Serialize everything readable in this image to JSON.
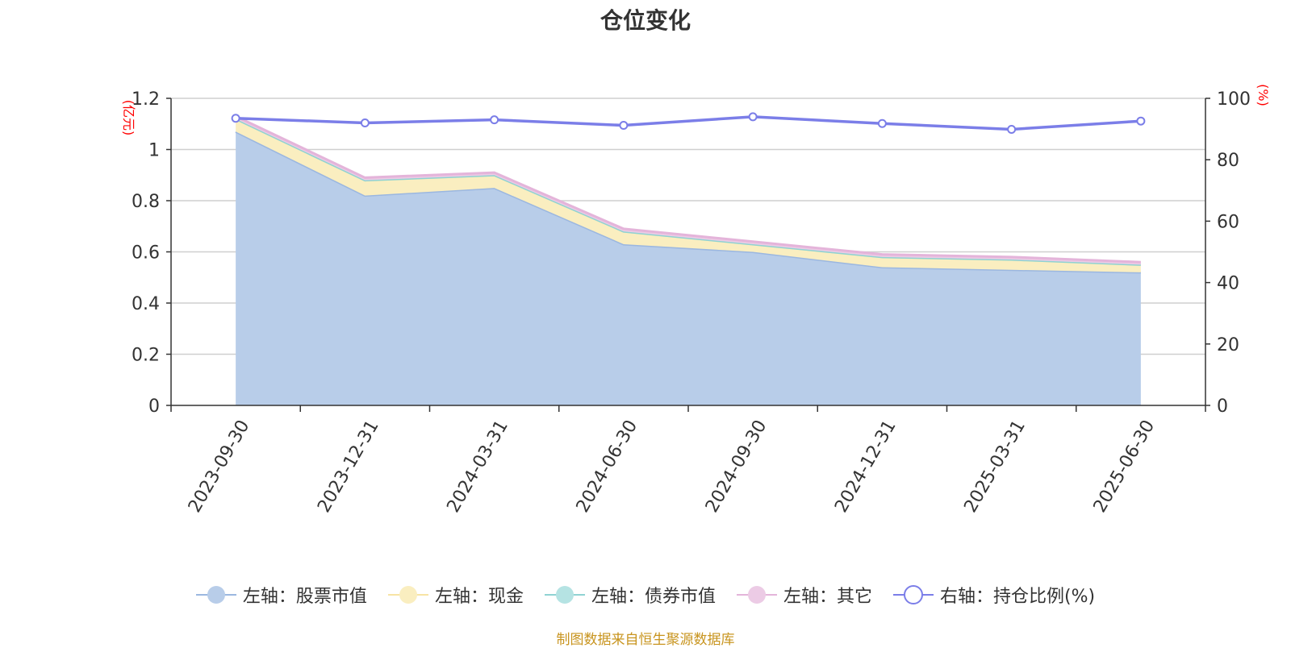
{
  "chart_data": {
    "type": "area",
    "title": "仓位变化",
    "categories": [
      "2023-09-30",
      "2023-12-31",
      "2024-03-31",
      "2024-06-30",
      "2024-09-30",
      "2024-12-31",
      "2025-03-31",
      "2025-06-30"
    ],
    "left_axis": {
      "unit": "(亿元)",
      "ylim": [
        0,
        1.2
      ],
      "ticks": [
        0,
        0.2,
        0.4,
        0.6,
        0.8,
        1,
        1.2
      ]
    },
    "right_axis": {
      "unit": "(%)",
      "ylim": [
        0,
        100
      ],
      "ticks": [
        0,
        20,
        40,
        60,
        80,
        100
      ]
    },
    "series": [
      {
        "name": "左轴：股票市值",
        "axis": "left",
        "kind": "stacked-area",
        "color": "#9bb7e0",
        "fill": "#b8cde9",
        "values": [
          1.07,
          0.82,
          0.85,
          0.63,
          0.6,
          0.54,
          0.53,
          0.52
        ]
      },
      {
        "name": "左轴：现金",
        "axis": "left",
        "kind": "stacked-area",
        "color": "#f7e4a4",
        "fill": "#faeec0",
        "values": [
          0.05,
          0.06,
          0.05,
          0.05,
          0.03,
          0.04,
          0.04,
          0.03
        ]
      },
      {
        "name": "左轴：债券市值",
        "axis": "left",
        "kind": "stacked-area",
        "color": "#8fd3d3",
        "fill": "#b5e3e3",
        "values": [
          0,
          0,
          0,
          0,
          0,
          0,
          0,
          0
        ]
      },
      {
        "name": "左轴：其它",
        "axis": "left",
        "kind": "stacked-area",
        "color": "#e4b4da",
        "fill": "#eccbe5",
        "values": [
          0.01,
          0.01,
          0.01,
          0.01,
          0.01,
          0.01,
          0.01,
          0.01
        ]
      },
      {
        "name": "右轴：持仓比例(%)",
        "axis": "right",
        "kind": "line",
        "color": "#7b7ee8",
        "values": [
          93.5,
          92.0,
          93.0,
          91.2,
          94.0,
          91.8,
          89.9,
          92.6
        ]
      }
    ],
    "grid": true,
    "legend_position": "bottom"
  },
  "source_note": "制图数据来自恒生聚源数据库"
}
